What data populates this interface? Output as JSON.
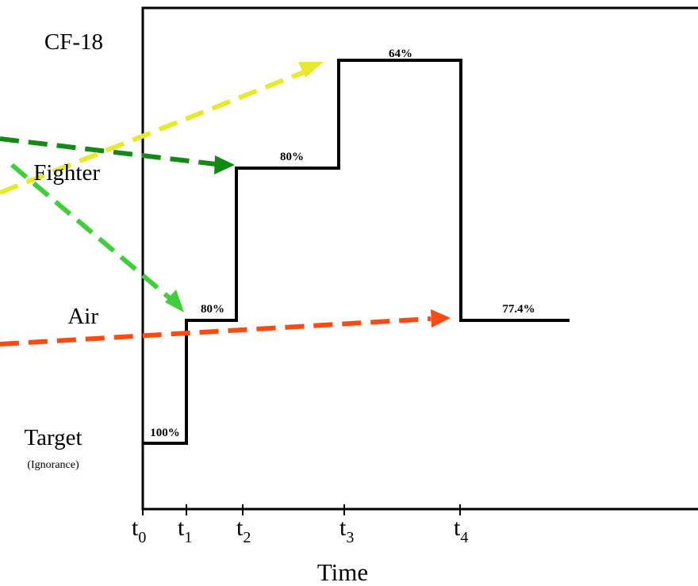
{
  "levels": {
    "cf18": "CF-18",
    "fighter": "Fighter",
    "air": "Air",
    "target": "Target",
    "target_sub": "(Ignorance)"
  },
  "percentages": {
    "p_target": "100%",
    "p_air": "80%",
    "p_fighter": "80%",
    "p_cf18": "64%",
    "p_final": "77.4%"
  },
  "time_ticks": [
    {
      "base": "t",
      "sub": "0"
    },
    {
      "base": "t",
      "sub": "1"
    },
    {
      "base": "t",
      "sub": "2"
    },
    {
      "base": "t",
      "sub": "3"
    },
    {
      "base": "t",
      "sub": "4"
    }
  ],
  "axis_title": "Time",
  "colors": {
    "dark_green": "#138a13",
    "light_green": "#3fcf3a",
    "yellow": "#e6ea2a",
    "orange_red": "#ff4a12",
    "line": "#000000"
  }
}
